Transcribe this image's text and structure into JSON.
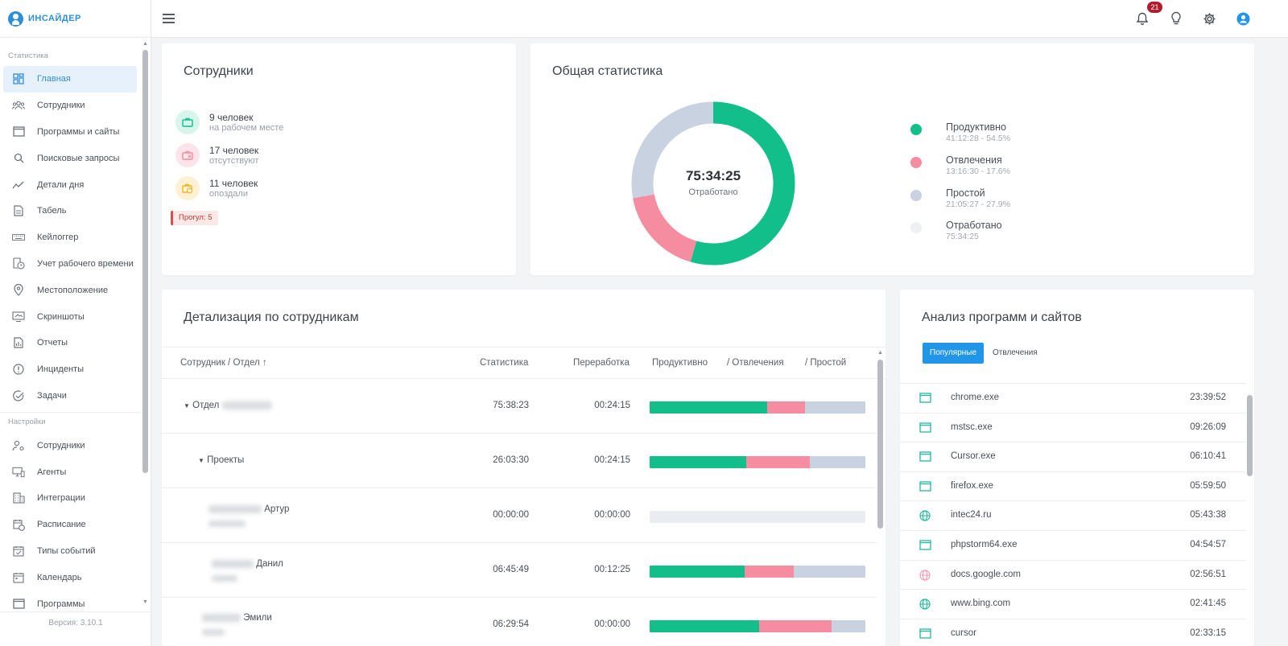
{
  "brand": {
    "name": "ИНСАЙДЕР"
  },
  "sidebar": {
    "section_stats": "Статистика",
    "section_settings": "Настройки",
    "version": "Версия: 3.10.1",
    "stats_items": [
      {
        "label": "Главная",
        "icon": "dashboard-icon",
        "active": true
      },
      {
        "label": "Сотрудники",
        "icon": "people-icon"
      },
      {
        "label": "Программы и сайты",
        "icon": "window-icon"
      },
      {
        "label": "Поисковые запросы",
        "icon": "search-icon"
      },
      {
        "label": "Детали дня",
        "icon": "trend-icon"
      },
      {
        "label": "Табель",
        "icon": "document-icon"
      },
      {
        "label": "Кейлоггер",
        "icon": "keyboard-icon"
      },
      {
        "label": "Учет рабочего времени",
        "icon": "clock-doc-icon"
      },
      {
        "label": "Местоположение",
        "icon": "pin-icon"
      },
      {
        "label": "Скриншоты",
        "icon": "screenshot-icon"
      },
      {
        "label": "Отчеты",
        "icon": "report-icon"
      },
      {
        "label": "Инциденты",
        "icon": "alert-icon"
      },
      {
        "label": "Задачи",
        "icon": "check-circle-icon"
      }
    ],
    "settings_items": [
      {
        "label": "Сотрудники",
        "icon": "user-gear-icon"
      },
      {
        "label": "Агенты",
        "icon": "monitor-icon"
      },
      {
        "label": "Интеграции",
        "icon": "building-icon"
      },
      {
        "label": "Расписание",
        "icon": "schedule-icon"
      },
      {
        "label": "Типы событий",
        "icon": "calendar-check-icon"
      },
      {
        "label": "Календарь",
        "icon": "calendar-icon"
      },
      {
        "label": "Программы",
        "icon": "window-icon"
      }
    ]
  },
  "header": {
    "notifications_count": "21"
  },
  "employees": {
    "title": "Сотрудники",
    "rows": [
      {
        "count": "9 человек",
        "sub": "на рабочем месте",
        "color": "#12bf8a"
      },
      {
        "count": "17 человек",
        "sub": "отсутствуют",
        "color": "#f58ca0"
      },
      {
        "count": "11 человек",
        "sub": "опоздали",
        "color": "#f0b429"
      }
    ],
    "truant": "Прогул: 5"
  },
  "stats": {
    "title": "Общая статистика",
    "center_value": "75:34:25",
    "center_label": "Отработано",
    "legend": [
      {
        "name": "Продуктивно",
        "value": "41:12:28 - 54.5%",
        "color": "#12bf8a"
      },
      {
        "name": "Отвлечения",
        "value": "13:16:30 - 17.6%",
        "color": "#f58ca0"
      },
      {
        "name": "Простой",
        "value": "21:05:27 - 27.9%",
        "color": "#c8d2e1"
      },
      {
        "name": "Отработано",
        "value": "75:34:25",
        "color": "#eef0f3"
      }
    ],
    "chart_data": {
      "type": "pie",
      "categories": [
        "Продуктивно",
        "Отвлечения",
        "Простой"
      ],
      "values": [
        54.5,
        17.6,
        27.9
      ],
      "colors": [
        "#12bf8a",
        "#f58ca0",
        "#c8d2e1"
      ]
    }
  },
  "details": {
    "title": "Детализация по сотрудникам",
    "columns": {
      "employee": "Сотрудник / Отдел",
      "sort_arrow": "↑",
      "stats": "Статистика",
      "overtime": "Переработка",
      "productive": "Продуктивно",
      "distraction": "/ Отвлечения",
      "idle": "/ Простой"
    },
    "rows": [
      {
        "name": "Отдел",
        "stats": "75:38:23",
        "overtime": "00:24:15",
        "bar": [
          54.5,
          17.6,
          27.9
        ]
      },
      {
        "name": "Проекты",
        "stats": "26:03:30",
        "overtime": "00:24:15",
        "bar": [
          44.8,
          29.5,
          25.7
        ]
      },
      {
        "name": "Артур",
        "stats": "00:00:00",
        "overtime": "00:00:00",
        "bar": [
          0,
          0,
          0
        ]
      },
      {
        "name": "Данил",
        "stats": "06:45:49",
        "overtime": "00:12:25",
        "bar": [
          44,
          22.8,
          33.2
        ]
      },
      {
        "name": "Эмили",
        "stats": "06:29:54",
        "overtime": "00:00:00",
        "bar": [
          50.7,
          33.6,
          15.7
        ]
      }
    ]
  },
  "apps": {
    "title": "Анализ программ и сайтов",
    "tab_popular": "Популярные",
    "tab_distraction": "Отвлечения",
    "rows": [
      {
        "name": "chrome.exe",
        "time": "23:39:52",
        "icon": "window-icon"
      },
      {
        "name": "mstsc.exe",
        "time": "09:26:09",
        "icon": "window-icon"
      },
      {
        "name": "Cursor.exe",
        "time": "06:10:41",
        "icon": "window-icon"
      },
      {
        "name": "firefox.exe",
        "time": "05:59:50",
        "icon": "window-icon"
      },
      {
        "name": "intec24.ru",
        "time": "05:43:38",
        "icon": "globe-icon"
      },
      {
        "name": "phpstorm64.exe",
        "time": "04:54:57",
        "icon": "window-icon"
      },
      {
        "name": "docs.google.com",
        "time": "02:56:51",
        "icon": "globe-pink-icon"
      },
      {
        "name": "www.bing.com",
        "time": "02:41:45",
        "icon": "globe-icon"
      },
      {
        "name": "cursor",
        "time": "02:33:15",
        "icon": "window-icon"
      }
    ]
  }
}
